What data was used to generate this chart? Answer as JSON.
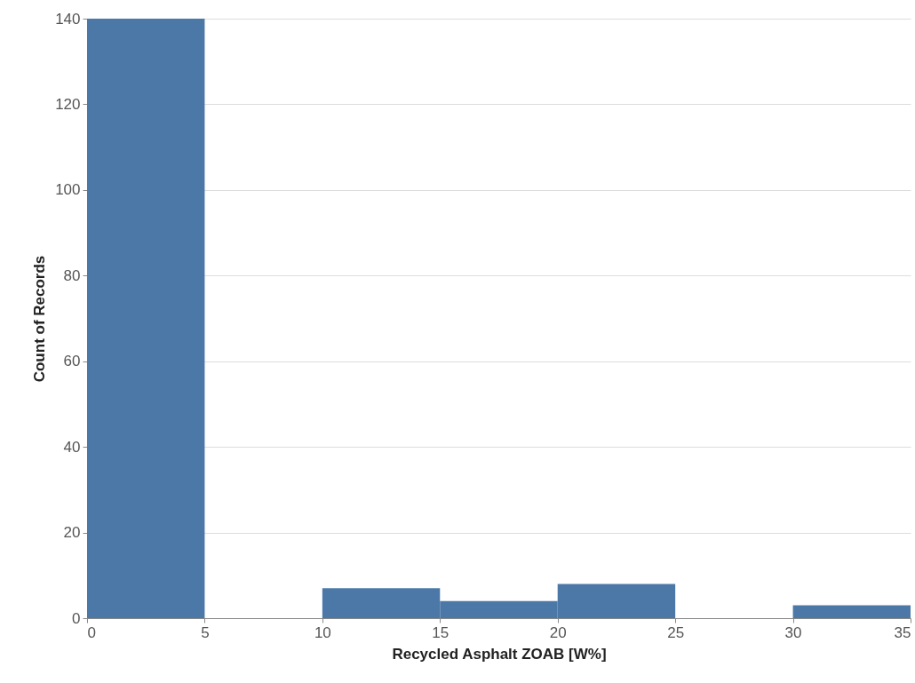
{
  "chart_data": {
    "type": "histogram",
    "xlabel": "Recycled Asphalt ZOAB [W%]",
    "ylabel": "Count of Records",
    "bins": [
      0,
      5,
      10,
      15,
      20,
      25,
      30,
      35
    ],
    "values": [
      140,
      0,
      7,
      4,
      8,
      0,
      3
    ],
    "color": "#4c78a8",
    "xlim": [
      0,
      35
    ],
    "xticks": [
      0,
      5,
      10,
      15,
      20,
      25,
      30,
      35
    ],
    "ylim": [
      0,
      140
    ],
    "yticks": [
      0,
      20,
      40,
      60,
      80,
      100,
      120,
      140
    ],
    "grid": "y"
  }
}
